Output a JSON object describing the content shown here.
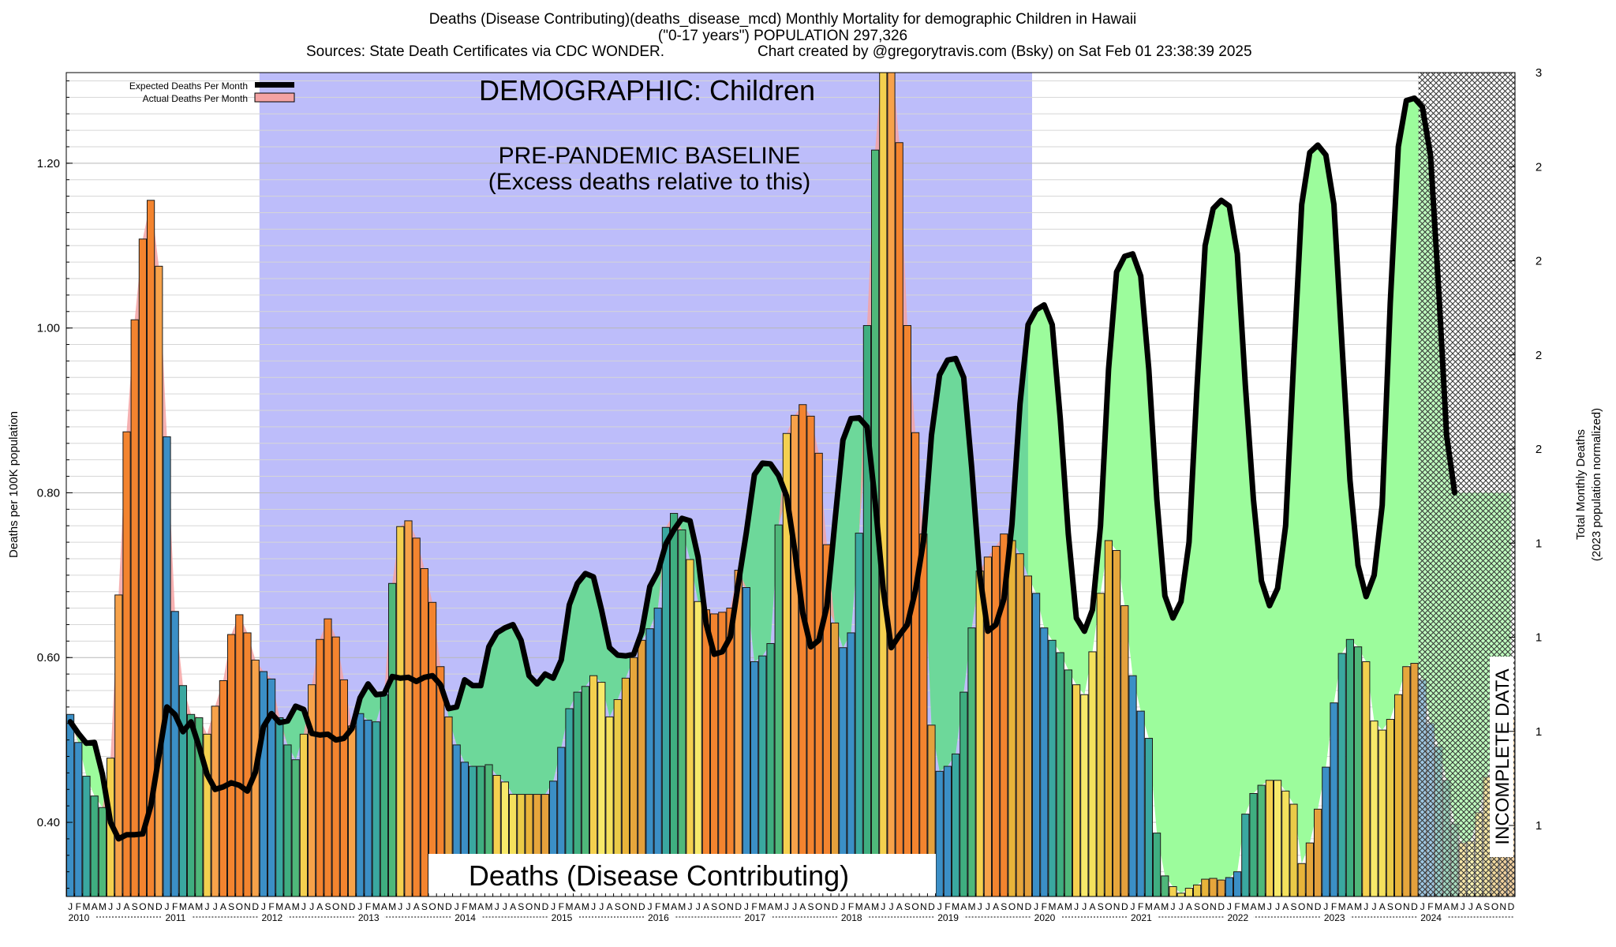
{
  "header": {
    "line1": "Deaths (Disease Contributing)(deaths_disease_mcd) Monthly Mortality for demographic Children in Hawaii",
    "line2": "(\"0-17 years\") POPULATION 297,326",
    "line3_left": "Sources: State Death Certificates via CDC WONDER.",
    "line3_right": "Chart created by @gregorytravis.com (Bsky) on Sat Feb 01 23:38:39 2025"
  },
  "annotations": {
    "demographic": "DEMOGRAPHIC: Children",
    "baseline_1": "PRE-PANDEMIC BASELINE",
    "baseline_2": "(Excess deaths relative to this)",
    "incomplete": "INCOMPLETE DATA",
    "metric": "Deaths (Disease Contributing)"
  },
  "legend": {
    "expected": "Expected Deaths Per Month",
    "actual": "Actual Deaths Per Month"
  },
  "colors": {
    "baseline_bg": "#bdbdfa",
    "green_fill": "#9cfc9c",
    "teal_fill": "#6dd89a",
    "actual_fill": "#f4a3a3",
    "expected_line": "#000000"
  },
  "chart_data": {
    "type": "bar",
    "ylabel": "Deaths per 100K population",
    "y2label_1": "Total Monthly Deaths",
    "y2label_2": "(2023 population normalized)",
    "ylim": [
      0.31,
      1.31
    ],
    "y_ticks": [
      "0.40",
      "0.60",
      "0.80",
      "1.00",
      "1.20"
    ],
    "y2_ticks": [
      "1",
      "1",
      "1",
      "1",
      "2",
      "2",
      "2",
      "2",
      "3"
    ],
    "month_letters": [
      "J",
      "F",
      "M",
      "A",
      "M",
      "J",
      "J",
      "A",
      "S",
      "O",
      "N",
      "D"
    ],
    "years": [
      "2010",
      "2011",
      "2012",
      "2013",
      "2014",
      "2015",
      "2016",
      "2017",
      "2018",
      "2019",
      "2020",
      "2021",
      "2022",
      "2023",
      "2024"
    ],
    "baseline_period": [
      "2012-01",
      "2019-12"
    ],
    "incomplete_from": "2024-01",
    "actual": [
      0.531,
      0.497,
      0.456,
      0.432,
      0.418,
      0.478,
      0.676,
      0.874,
      1.01,
      1.108,
      1.155,
      1.075,
      0.868,
      0.656,
      0.566,
      0.531,
      0.527,
      0.507,
      0.541,
      0.572,
      0.628,
      0.652,
      0.63,
      0.597,
      0.583,
      0.574,
      0.527,
      0.494,
      0.476,
      0.507,
      0.567,
      0.622,
      0.647,
      0.625,
      0.573,
      0.517,
      0.532,
      0.524,
      0.522,
      0.555,
      0.69,
      0.759,
      0.766,
      0.745,
      0.708,
      0.667,
      0.589,
      0.528,
      0.494,
      0.473,
      0.468,
      0.468,
      0.47,
      0.457,
      0.449,
      0.434,
      0.434,
      0.434,
      0.434,
      0.434,
      0.45,
      0.491,
      0.538,
      0.558,
      0.565,
      0.578,
      0.57,
      0.528,
      0.549,
      0.575,
      0.6,
      0.621,
      0.635,
      0.66,
      0.758,
      0.775,
      0.755,
      0.719,
      0.668,
      0.658,
      0.653,
      0.655,
      0.66,
      0.706,
      0.685,
      0.595,
      0.602,
      0.617,
      0.761,
      0.872,
      0.894,
      0.907,
      0.893,
      0.848,
      0.737,
      0.642,
      0.612,
      0.63,
      0.751,
      1.003,
      1.216,
      1.335,
      1.335,
      1.225,
      1.003,
      0.873,
      0.75,
      0.518,
      0.462,
      0.468,
      0.483,
      0.558,
      0.636,
      0.705,
      0.722,
      0.735,
      0.75,
      0.742,
      0.726,
      0.699,
      0.678,
      0.636,
      0.621,
      0.606,
      0.585,
      0.567,
      0.555,
      0.607,
      0.678,
      0.742,
      0.73,
      0.663,
      0.578,
      0.535,
      0.502,
      0.387,
      0.335,
      0.322,
      0.314,
      0.32,
      0.324,
      0.331,
      0.332,
      0.33,
      0.333,
      0.34,
      0.41,
      0.435,
      0.445,
      0.451,
      0.451,
      0.438,
      0.422,
      0.35,
      0.375,
      0.416,
      0.467,
      0.545,
      0.605,
      0.622,
      0.613,
      0.595,
      0.523,
      0.512,
      0.525,
      0.555,
      0.589,
      0.593,
      0.573,
      0.52,
      0.492,
      0.451,
      0.398,
      0.375,
      0.377,
      0.412,
      0.455,
      0.481,
      0.508,
      0.525
    ],
    "expected": [
      0.522,
      0.508,
      0.496,
      0.497,
      0.458,
      0.4,
      0.38,
      0.385,
      0.385,
      0.386,
      0.42,
      0.48,
      0.54,
      0.531,
      0.51,
      0.522,
      0.492,
      0.458,
      0.44,
      0.443,
      0.448,
      0.445,
      0.438,
      0.461,
      0.516,
      0.532,
      0.521,
      0.523,
      0.541,
      0.537,
      0.508,
      0.506,
      0.507,
      0.5,
      0.502,
      0.514,
      0.551,
      0.568,
      0.555,
      0.556,
      0.577,
      0.575,
      0.576,
      0.571,
      0.576,
      0.578,
      0.567,
      0.538,
      0.54,
      0.573,
      0.566,
      0.566,
      0.613,
      0.63,
      0.636,
      0.64,
      0.621,
      0.578,
      0.568,
      0.58,
      0.575,
      0.597,
      0.664,
      0.69,
      0.702,
      0.698,
      0.658,
      0.612,
      0.603,
      0.602,
      0.604,
      0.631,
      0.686,
      0.704,
      0.738,
      0.755,
      0.769,
      0.766,
      0.722,
      0.641,
      0.604,
      0.607,
      0.625,
      0.69,
      0.752,
      0.822,
      0.836,
      0.835,
      0.821,
      0.796,
      0.731,
      0.654,
      0.613,
      0.621,
      0.662,
      0.765,
      0.864,
      0.89,
      0.891,
      0.88,
      0.789,
      0.683,
      0.612,
      0.627,
      0.64,
      0.681,
      0.741,
      0.87,
      0.943,
      0.961,
      0.963,
      0.94,
      0.83,
      0.7,
      0.632,
      0.64,
      0.671,
      0.762,
      0.908,
      1.004,
      1.022,
      1.028,
      1.004,
      0.89,
      0.75,
      0.648,
      0.632,
      0.658,
      0.76,
      0.95,
      1.068,
      1.087,
      1.09,
      1.063,
      0.95,
      0.792,
      0.675,
      0.648,
      0.668,
      0.74,
      0.93,
      1.1,
      1.145,
      1.155,
      1.148,
      1.09,
      0.93,
      0.792,
      0.693,
      0.663,
      0.684,
      0.76,
      0.96,
      1.15,
      1.213,
      1.222,
      1.21,
      1.15,
      0.98,
      0.815,
      0.712,
      0.674,
      0.7,
      0.785,
      1.03,
      1.22,
      1.276,
      1.279,
      1.268,
      1.21,
      1.05,
      0.87,
      0.8
    ]
  }
}
